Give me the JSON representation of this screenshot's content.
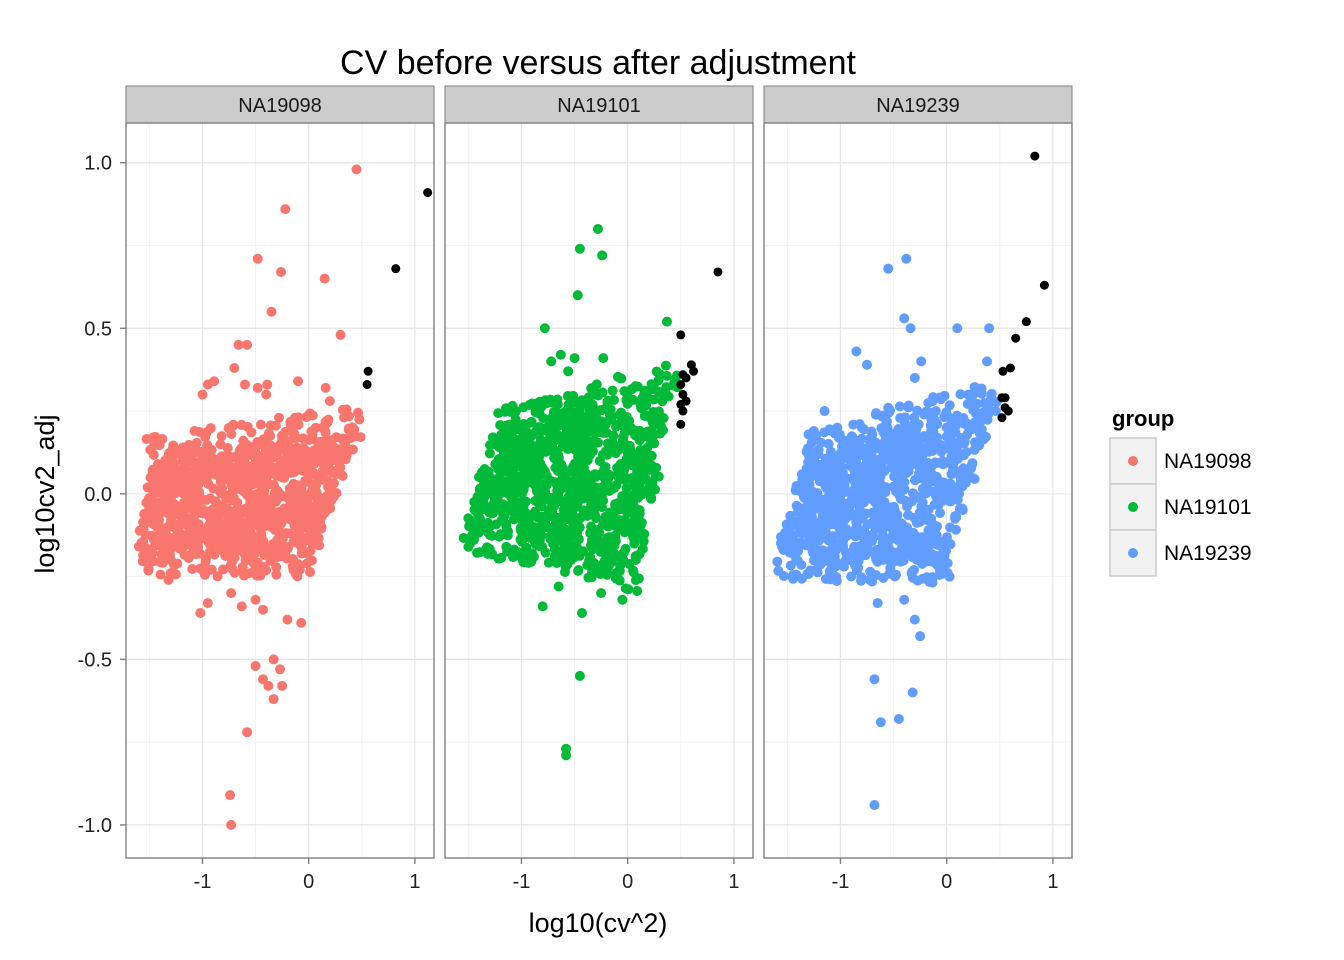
{
  "chart_data": {
    "type": "scatter",
    "title": "CV before versus after adjustment",
    "xlabel": "log10(cv^2)",
    "ylabel": "log10cv2_adj",
    "xlim": [
      -1.72,
      1.18
    ],
    "ylim": [
      -1.1,
      1.12
    ],
    "x_ticks": [
      -1,
      0,
      1
    ],
    "x_tick_labels": [
      "-1",
      "0",
      "1"
    ],
    "y_ticks": [
      1.0,
      0.5,
      0.0,
      -0.5,
      -1.0
    ],
    "y_tick_labels": [
      "1.0",
      "0.5",
      "0.0",
      "-0.5",
      "-1.0"
    ],
    "grid": true,
    "legend": {
      "title": "group",
      "position": "right",
      "entries": [
        {
          "label": "NA19098",
          "color": "#F8766D"
        },
        {
          "label": "NA19101",
          "color": "#00BA38"
        },
        {
          "label": "NA19239",
          "color": "#619CFF"
        }
      ]
    },
    "highlight_color": "#000000",
    "facets": [
      {
        "label": "NA19098",
        "color": "#F8766D",
        "bulk": {
          "bottom_left": [
            -1.6,
            -0.18
          ],
          "bottom_right": [
            0.05,
            -0.18
          ],
          "top_right": [
            0.5,
            0.2
          ],
          "top_left": [
            -1.5,
            0.1
          ]
        },
        "outliers": [
          [
            -0.07,
            -0.39
          ],
          [
            -0.33,
            -0.62
          ],
          [
            -0.43,
            -0.56
          ],
          [
            -0.38,
            -0.58
          ],
          [
            -0.5,
            -0.52
          ],
          [
            -0.33,
            -0.5
          ],
          [
            -0.27,
            -0.53
          ],
          [
            -0.25,
            -0.58
          ],
          [
            -0.58,
            -0.72
          ],
          [
            -0.74,
            -0.91
          ],
          [
            -0.73,
            -1.0
          ],
          [
            -1.32,
            -0.26
          ],
          [
            -1.02,
            -0.36
          ],
          [
            -0.95,
            -0.33
          ],
          [
            -0.5,
            -0.32
          ],
          [
            -0.63,
            -0.34
          ],
          [
            -0.73,
            -0.3
          ],
          [
            -0.43,
            -0.35
          ],
          [
            -0.2,
            -0.38
          ],
          [
            0.45,
            0.98
          ],
          [
            -0.22,
            0.86
          ],
          [
            -0.48,
            0.71
          ],
          [
            -0.26,
            0.67
          ],
          [
            0.15,
            0.65
          ],
          [
            -0.35,
            0.55
          ],
          [
            -0.66,
            0.45
          ],
          [
            -0.58,
            0.45
          ],
          [
            0.3,
            0.48
          ],
          [
            -0.7,
            0.38
          ],
          [
            -0.6,
            0.33
          ],
          [
            -0.48,
            0.32
          ],
          [
            -0.39,
            0.33
          ],
          [
            -0.4,
            0.3
          ],
          [
            -0.95,
            0.33
          ],
          [
            -0.89,
            0.34
          ],
          [
            -0.1,
            0.34
          ],
          [
            0.16,
            0.32
          ],
          [
            -1.0,
            0.3
          ],
          [
            0.2,
            0.28
          ]
        ],
        "adjusted": [
          [
            1.12,
            0.91
          ],
          [
            0.82,
            0.68
          ],
          [
            0.56,
            0.37
          ],
          [
            0.55,
            0.33
          ]
        ]
      },
      {
        "label": "NA19101",
        "color": "#00BA38",
        "bulk": {
          "bottom_left": [
            -1.5,
            -0.1
          ],
          "bottom_right": [
            0.1,
            -0.23
          ],
          "top_right": [
            0.45,
            0.33
          ],
          "top_left": [
            -1.25,
            0.18
          ]
        },
        "outliers": [
          [
            -0.28,
            0.8
          ],
          [
            -0.45,
            0.74
          ],
          [
            -0.24,
            0.72
          ],
          [
            -0.47,
            0.6
          ],
          [
            -0.78,
            0.5
          ],
          [
            0.37,
            0.52
          ],
          [
            -0.63,
            0.42
          ],
          [
            -0.72,
            0.4
          ],
          [
            -0.5,
            0.41
          ],
          [
            -0.23,
            0.41
          ],
          [
            -0.56,
            0.37
          ],
          [
            -0.45,
            -0.55
          ],
          [
            -0.58,
            -0.77
          ],
          [
            -0.58,
            -0.79
          ],
          [
            -0.8,
            -0.34
          ],
          [
            -0.43,
            -0.36
          ],
          [
            -0.25,
            -0.3
          ],
          [
            -0.05,
            -0.32
          ],
          [
            -1.5,
            -0.16
          ],
          [
            -1.3,
            -0.17
          ],
          [
            -0.9,
            -0.18
          ],
          [
            -0.65,
            -0.28
          ]
        ],
        "adjusted": [
          [
            0.85,
            0.67
          ],
          [
            0.5,
            0.48
          ],
          [
            0.6,
            0.39
          ],
          [
            0.62,
            0.37
          ],
          [
            0.52,
            0.36
          ],
          [
            0.55,
            0.35
          ],
          [
            0.5,
            0.33
          ],
          [
            0.52,
            0.3
          ],
          [
            0.55,
            0.28
          ],
          [
            0.5,
            0.27
          ],
          [
            0.52,
            0.25
          ],
          [
            0.5,
            0.21
          ]
        ]
      },
      {
        "label": "NA19239",
        "color": "#619CFF",
        "bulk": {
          "bottom_left": [
            -1.6,
            -0.19
          ],
          "bottom_right": [
            0.0,
            -0.2
          ],
          "top_right": [
            0.45,
            0.27
          ],
          "top_left": [
            -1.3,
            0.12
          ]
        },
        "outliers": [
          [
            -0.38,
            0.71
          ],
          [
            -0.55,
            0.68
          ],
          [
            -0.4,
            0.53
          ],
          [
            -0.34,
            0.5
          ],
          [
            0.1,
            0.5
          ],
          [
            0.4,
            0.5
          ],
          [
            -0.85,
            0.43
          ],
          [
            -0.75,
            0.39
          ],
          [
            -0.24,
            0.4
          ],
          [
            -0.3,
            0.35
          ],
          [
            0.38,
            0.4
          ],
          [
            -1.15,
            0.25
          ],
          [
            -1.03,
            0.2
          ],
          [
            -0.55,
            0.26
          ],
          [
            -0.25,
            -0.43
          ],
          [
            -0.3,
            -0.38
          ],
          [
            -0.68,
            -0.56
          ],
          [
            -0.62,
            -0.69
          ],
          [
            -0.45,
            -0.68
          ],
          [
            -0.32,
            -0.6
          ],
          [
            -0.68,
            -0.94
          ],
          [
            -0.65,
            -0.33
          ],
          [
            -0.4,
            -0.32
          ],
          [
            -1.4,
            -0.17
          ]
        ],
        "adjusted": [
          [
            0.83,
            1.02
          ],
          [
            0.92,
            0.63
          ],
          [
            0.75,
            0.52
          ],
          [
            0.65,
            0.47
          ],
          [
            0.6,
            0.38
          ],
          [
            0.53,
            0.37
          ],
          [
            0.52,
            0.29
          ],
          [
            0.55,
            0.29
          ],
          [
            0.55,
            0.26
          ],
          [
            0.58,
            0.25
          ],
          [
            0.52,
            0.23
          ]
        ]
      }
    ]
  }
}
